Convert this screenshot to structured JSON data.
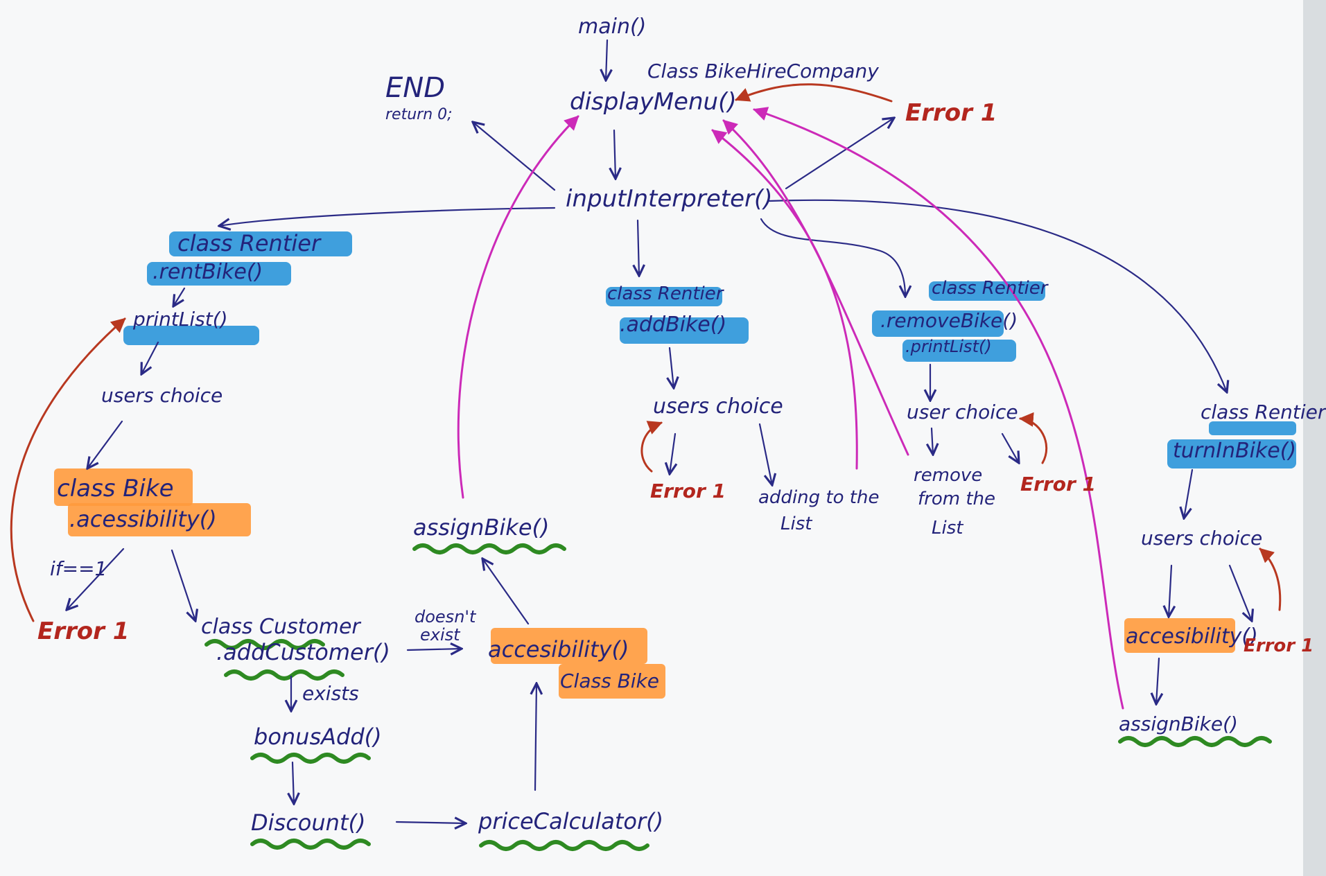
{
  "labels": {
    "main": "main()",
    "class_bhc": "Class BikeHireCompany",
    "display_menu": "displayMenu()",
    "end": "END",
    "return0": "return 0;",
    "input_interpreter": "inputInterpreter()",
    "error1": "Error 1",
    "left": {
      "class_rentier": "class Rentier",
      "rent_bike": ".rentBike()",
      "print_list": "printList()",
      "users_choice": "users choice",
      "class_bike": "class Bike",
      "accessibility": ".acessibility()",
      "if_eq": "if==1",
      "class_customer": "class Customer",
      "add_customer": ".addCustomer()",
      "doesnt": "doesn't",
      "exist": "exist",
      "exists": "exists",
      "bonus_add": "bonusAdd()",
      "discount": "Discount()",
      "price_calculator": "priceCalculator()",
      "accesibility2": "accesibility()",
      "class_bike2": "Class Bike",
      "assign_bike": "assignBike()"
    },
    "center": {
      "class_rentier": "class Rentier",
      "add_bike": ".addBike()",
      "users_choice": "users choice",
      "adding": "adding to the",
      "list": "List"
    },
    "right": {
      "class_rentier": "class Rentier",
      "remove_bike": ".removeBike()",
      "print_list": ".printList()",
      "user_choice": "user choice",
      "remove": "remove",
      "from_the": "from the",
      "list": "List"
    },
    "far_right": {
      "class_rentier": "class Rentier",
      "turn_in_bike": "turnInBike()",
      "users_choice": "users choice",
      "accesibility": "accesibility()",
      "assign_bike": "assignBike()"
    }
  },
  "colors": {
    "ink": "#23237a",
    "error": "#b3261e",
    "highlight_blue": "#1e8fd8",
    "highlight_orange": "#ff9a3c",
    "underline_green": "#2e8a22",
    "arrow_magenta": "#cc2ab8"
  }
}
